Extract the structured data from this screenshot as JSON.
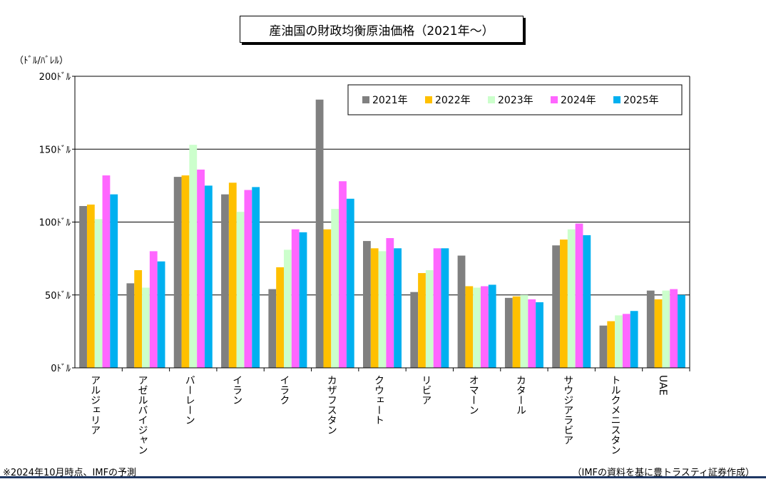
{
  "chart_data": {
    "type": "bar",
    "title": "産油国の財政均衡原油価格（2021年～）",
    "ylabel": "（ﾄﾞﾙ/ﾊﾞﾚﾙ）",
    "ylim": [
      0,
      200
    ],
    "yticks": [
      "0ﾄﾞﾙ",
      "50ﾄﾞﾙ",
      "100ﾄﾞﾙ",
      "150ﾄﾞﾙ",
      "200ﾄﾞﾙ"
    ],
    "ytick_values": [
      0,
      50,
      100,
      150,
      200
    ],
    "grid": true,
    "legend_position": "top-right",
    "categories": [
      "アルジェリア",
      "アゼルバイジャン",
      "バーレーン",
      "イラン",
      "イラク",
      "カザフスタン",
      "クウェート",
      "リビア",
      "オマーン",
      "カタール",
      "サウジアラビア",
      "トルクメニスタン",
      "UAE"
    ],
    "series": [
      {
        "name": "2021年",
        "color": "#808080",
        "values": [
          111,
          58,
          131,
          119,
          54,
          184,
          87,
          52,
          77,
          48,
          84,
          29,
          53
        ]
      },
      {
        "name": "2022年",
        "color": "#ffc000",
        "values": [
          112,
          67,
          132,
          127,
          69,
          95,
          82,
          65,
          56,
          49,
          88,
          32,
          47
        ]
      },
      {
        "name": "2023年",
        "color": "#ccffcc",
        "values": [
          102,
          55,
          153,
          107,
          81,
          109,
          80,
          67,
          55,
          50,
          95,
          36,
          53
        ]
      },
      {
        "name": "2024年",
        "color": "#ff66ff",
        "values": [
          132,
          80,
          136,
          122,
          95,
          128,
          89,
          82,
          56,
          47,
          99,
          37,
          54
        ]
      },
      {
        "name": "2025年",
        "color": "#00b0f0",
        "values": [
          119,
          73,
          125,
          124,
          93,
          116,
          82,
          82,
          57,
          45,
          91,
          39,
          50
        ]
      }
    ]
  },
  "notes": {
    "left": "※2024年10月時点、IMFの予測",
    "right": "（IMFの資料を基に豊トラスティ証券作成）"
  }
}
